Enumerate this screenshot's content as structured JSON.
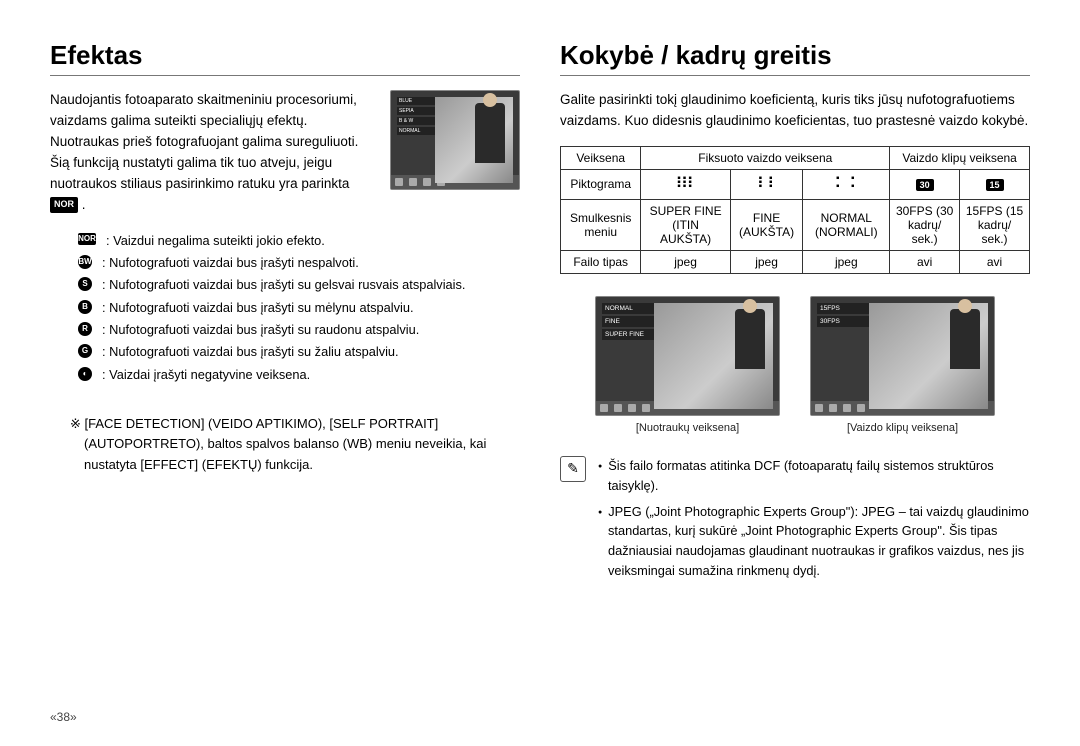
{
  "page_number": "«38»",
  "left": {
    "title": "Efektas",
    "intro": "Naudojantis fotoaparato skaitmeniniu procesoriumi, vaizdams galima suteikti specialiųjų efektų.\nNuotraukas prieš fotografuojant galima sureguliuoti.\nŠią funkciją nustatyti galima tik tuo atveju, jeigu nuotraukos stiliaus pasirinkimo ratuku yra parinkta",
    "intro_badge": "NOR",
    "thumb_menu": [
      "BLUE",
      "SEPIA",
      "B & W",
      "NORMAL"
    ],
    "effects": [
      {
        "icon": "NOR",
        "round": false,
        "text": ": Vaizdui negalima suteikti jokio efekto."
      },
      {
        "icon": "BW",
        "round": true,
        "text": ": Nufotografuoti vaizdai bus įrašyti nespalvoti."
      },
      {
        "icon": "S",
        "round": true,
        "text": ": Nufotografuoti vaizdai bus įrašyti su gelsvai rusvais atspalviais."
      },
      {
        "icon": "B",
        "round": true,
        "text": ": Nufotografuoti vaizdai bus įrašyti su mėlynu atspalviu."
      },
      {
        "icon": "R",
        "round": true,
        "text": ": Nufotografuoti vaizdai bus įrašyti su raudonu atspalviu."
      },
      {
        "icon": "G",
        "round": true,
        "text": ": Nufotografuoti vaizdai bus įrašyti su žaliu atspalviu."
      },
      {
        "icon": "◐",
        "round": true,
        "text": ": Vaizdai įrašyti negatyvine veiksena."
      }
    ],
    "note_marker": "※",
    "note": "[FACE DETECTION] (VEIDO APTIKIMO), [SELF PORTRAIT] (AUTOPORTRETO), baltos spalvos balanso (WB) meniu neveikia, kai nustatyta [EFFECT] (EFEKTŲ) funkcija."
  },
  "right": {
    "title": "Kokybė / kadrų greitis",
    "intro": "Galite pasirinkti tokį glaudinimo koeficientą, kuris tiks jūsų nufotografuotiems vaizdams. Kuo didesnis glaudinimo koeficientas, tuo prastesnė vaizdo kokybė.",
    "table": {
      "header_row": [
        "Veiksena",
        "Fiksuoto vaizdo veiksena",
        "Vaizdo klipų veiksena"
      ],
      "rows": [
        {
          "label": "Piktograma",
          "cells": [
            "dots9",
            "dots6",
            "dots4",
            "30",
            "15"
          ]
        },
        {
          "label": "Smulkesnis meniu",
          "cells": [
            "SUPER FINE (ITIN AUKŠTA)",
            "FINE (AUKŠTA)",
            "NORMAL (NORMALI)",
            "30FPS (30 kadrų/ sek.)",
            "15FPS (15 kadrų/ sek.)"
          ]
        },
        {
          "label": "Failo tipas",
          "cells": [
            "jpeg",
            "jpeg",
            "jpeg",
            "avi",
            "avi"
          ]
        }
      ]
    },
    "thumbs": [
      {
        "menu": [
          "NORMAL",
          "FINE",
          "SUPER FINE"
        ],
        "caption": "[Nuotraukų veiksena]"
      },
      {
        "menu": [
          "15FPS",
          "30FPS"
        ],
        "caption": "[Vaizdo klipų veiksena]"
      }
    ],
    "info": [
      "Šis failo formatas atitinka DCF (fotoaparatų failų sistemos struktūros taisyklę).",
      "JPEG („Joint Photographic Experts Group\"): JPEG – tai vaizdų glaudinimo standartas, kurį sukūrė „Joint Photographic Experts Group\". Šis tipas dažniausiai naudojamas glaudinant nuotraukas ir grafikos vaizdus, nes jis veiksmingai sumažina rinkmenų dydį."
    ]
  },
  "colors": {
    "text": "#000000",
    "rule": "#777777",
    "thumb_bg": "#3a3a3a",
    "badge_bg": "#000000",
    "badge_fg": "#ffffff"
  }
}
